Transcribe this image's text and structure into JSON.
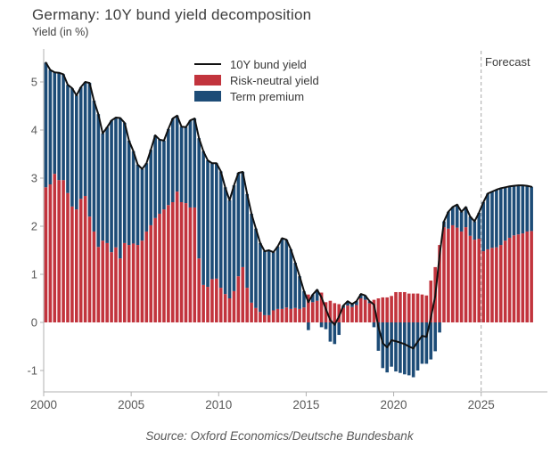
{
  "header": {
    "title": "Germany: 10Y bund yield decomposition",
    "subtitle": "Yield (in %)"
  },
  "legend": [
    {
      "label": "10Y bund yield",
      "type": "line",
      "color": "#111111"
    },
    {
      "label": "Risk-neutral yield",
      "type": "bar",
      "color": "#c2343d"
    },
    {
      "label": "Term premium",
      "type": "bar",
      "color": "#1d4c77"
    }
  ],
  "forecast": {
    "label": "Forecast",
    "start_year": 2025
  },
  "source": "Source: Oxford Economics/Deutsche Bundesbank",
  "chart_data": {
    "type": "bar",
    "subtype": "stacked-bars-with-line-overlay",
    "title": "Germany: 10Y bund yield decomposition",
    "xlabel": "",
    "ylabel": "Yield (in %)",
    "frequency": "quarterly",
    "x_start": "2000Q1",
    "x_end": "2027Q4",
    "x_ticks": [
      2000,
      2005,
      2010,
      2015,
      2020,
      2025
    ],
    "y_ticks": [
      -1,
      0,
      1,
      2,
      3,
      4,
      5
    ],
    "ylim": [
      -1.35,
      5.55
    ],
    "grid": false,
    "legend_position": "top-center",
    "forecast_start": 2025,
    "axis_color": "#b0b0b0",
    "tick_label_color": "#595959",
    "forecast_line_color": "#a8a8a8",
    "series": [
      {
        "name": "10Y bund yield",
        "type": "line",
        "color": "#111111",
        "values": [
          5.4,
          5.25,
          5.2,
          5.19,
          5.16,
          4.94,
          4.87,
          4.72,
          4.89,
          5.0,
          4.98,
          4.61,
          4.33,
          3.93,
          4.06,
          4.2,
          4.26,
          4.25,
          4.15,
          3.78,
          3.56,
          3.28,
          3.19,
          3.31,
          3.59,
          3.89,
          3.8,
          3.78,
          4.02,
          4.24,
          4.3,
          4.07,
          4.06,
          4.2,
          4.24,
          3.83,
          3.56,
          3.37,
          3.31,
          3.31,
          3.14,
          2.81,
          2.54,
          2.85,
          3.11,
          3.13,
          2.67,
          2.26,
          1.95,
          1.65,
          1.48,
          1.5,
          1.46,
          1.58,
          1.75,
          1.72,
          1.52,
          1.24,
          0.96,
          0.65,
          0.42,
          0.58,
          0.68,
          0.52,
          0.28,
          0.05,
          -0.05,
          0.12,
          0.35,
          0.44,
          0.38,
          0.44,
          0.59,
          0.56,
          0.44,
          0.37,
          -0.09,
          -0.43,
          -0.52,
          -0.37,
          -0.39,
          -0.42,
          -0.45,
          -0.5,
          -0.54,
          -0.4,
          -0.28,
          -0.3,
          0.1,
          0.55,
          1.4,
          2.1,
          2.3,
          2.4,
          2.45,
          2.3,
          2.4,
          2.2,
          2.1,
          2.28,
          2.5,
          2.68,
          2.72,
          2.76,
          2.79,
          2.81,
          2.83,
          2.84,
          2.85,
          2.85,
          2.84,
          2.82
        ]
      },
      {
        "name": "Risk-neutral yield",
        "type": "bar",
        "color": "#c2343d",
        "values": [
          2.81,
          2.87,
          3.09,
          2.96,
          2.96,
          2.69,
          2.41,
          2.35,
          2.57,
          2.63,
          2.2,
          1.89,
          1.57,
          1.7,
          1.65,
          1.46,
          1.56,
          1.33,
          1.65,
          1.61,
          1.64,
          1.61,
          1.7,
          1.89,
          2.02,
          2.17,
          2.26,
          2.35,
          2.44,
          2.5,
          2.72,
          2.5,
          2.48,
          2.39,
          2.39,
          1.33,
          0.78,
          0.74,
          0.9,
          0.91,
          0.72,
          0.59,
          0.5,
          0.65,
          0.96,
          1.15,
          0.72,
          0.41,
          0.3,
          0.22,
          0.15,
          0.15,
          0.25,
          0.28,
          0.28,
          0.31,
          0.28,
          0.3,
          0.28,
          0.31,
          0.58,
          0.42,
          0.45,
          0.62,
          0.42,
          0.45,
          0.4,
          0.38,
          0.3,
          0.35,
          0.32,
          0.36,
          0.5,
          0.47,
          0.4,
          0.47,
          0.5,
          0.52,
          0.52,
          0.55,
          0.63,
          0.63,
          0.63,
          0.6,
          0.6,
          0.6,
          0.58,
          0.56,
          0.87,
          1.15,
          1.61,
          1.98,
          1.95,
          2.02,
          1.97,
          1.89,
          1.98,
          1.8,
          1.72,
          1.74,
          1.48,
          1.52,
          1.55,
          1.56,
          1.61,
          1.7,
          1.76,
          1.81,
          1.83,
          1.85,
          1.89,
          1.9
        ]
      },
      {
        "name": "Term premium",
        "type": "bar",
        "color": "#1d4c77",
        "values": [
          2.59,
          2.38,
          2.11,
          2.23,
          2.2,
          2.25,
          2.46,
          2.37,
          2.32,
          2.37,
          2.78,
          2.72,
          2.76,
          2.23,
          2.41,
          2.74,
          2.7,
          2.92,
          2.5,
          2.17,
          1.92,
          1.67,
          1.49,
          1.42,
          1.57,
          1.72,
          1.54,
          1.43,
          1.58,
          1.74,
          1.58,
          1.57,
          1.58,
          1.81,
          1.85,
          2.5,
          2.78,
          2.63,
          2.41,
          2.4,
          2.42,
          2.22,
          2.04,
          2.2,
          2.15,
          1.98,
          1.95,
          1.85,
          1.65,
          1.43,
          1.33,
          1.35,
          1.21,
          1.3,
          1.47,
          1.41,
          1.24,
          0.94,
          0.68,
          0.34,
          -0.16,
          0.16,
          0.23,
          -0.1,
          -0.14,
          -0.4,
          -0.45,
          -0.26,
          0.05,
          0.09,
          0.06,
          0.08,
          0.09,
          0.09,
          0.04,
          -0.1,
          -0.59,
          -0.95,
          -1.04,
          -0.92,
          -1.02,
          -1.05,
          -1.08,
          -1.1,
          -1.14,
          -1.0,
          -0.86,
          -0.86,
          -0.77,
          -0.6,
          -0.21,
          0.12,
          0.35,
          0.38,
          0.48,
          0.41,
          0.42,
          0.4,
          0.38,
          0.54,
          1.02,
          1.16,
          1.17,
          1.2,
          1.18,
          1.11,
          1.07,
          1.03,
          1.02,
          1.0,
          0.95,
          0.92
        ]
      }
    ]
  }
}
